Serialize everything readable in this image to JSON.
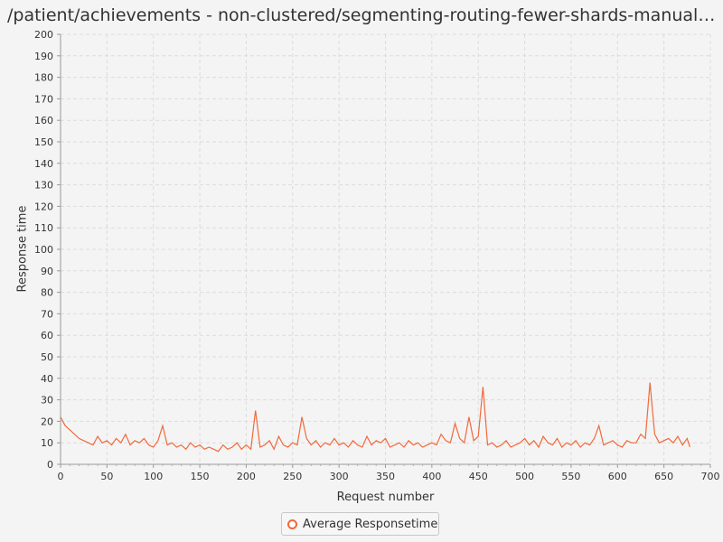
{
  "chart_data": {
    "type": "line",
    "title": "/patient/achievements - non-clustered/segmenting-routing-fewer-shards-manual-ref...",
    "xlabel": "Request number",
    "ylabel": "Response time",
    "xlim": [
      0,
      700
    ],
    "ylim": [
      0,
      200
    ],
    "xticks": [
      0,
      50,
      100,
      150,
      200,
      250,
      300,
      350,
      400,
      450,
      500,
      550,
      600,
      650,
      700
    ],
    "yticks": [
      0,
      10,
      20,
      30,
      40,
      50,
      60,
      70,
      80,
      90,
      100,
      110,
      120,
      130,
      140,
      150,
      160,
      170,
      180,
      190,
      200
    ],
    "grid": true,
    "legend_position": "bottom-center",
    "series": [
      {
        "name": "Average Responsetime",
        "color": "#f06a3c",
        "x": [
          0,
          5,
          10,
          15,
          20,
          25,
          30,
          35,
          40,
          45,
          50,
          55,
          60,
          65,
          70,
          75,
          80,
          85,
          90,
          95,
          100,
          105,
          110,
          115,
          120,
          125,
          130,
          135,
          140,
          145,
          150,
          155,
          160,
          165,
          170,
          175,
          180,
          185,
          190,
          195,
          200,
          205,
          210,
          215,
          220,
          225,
          230,
          235,
          240,
          245,
          250,
          255,
          260,
          265,
          270,
          275,
          280,
          285,
          290,
          295,
          300,
          305,
          310,
          315,
          320,
          325,
          330,
          335,
          340,
          345,
          350,
          355,
          360,
          365,
          370,
          375,
          380,
          385,
          390,
          395,
          400,
          405,
          410,
          415,
          420,
          425,
          430,
          435,
          440,
          445,
          450,
          455,
          460,
          465,
          470,
          475,
          480,
          485,
          490,
          495,
          500,
          505,
          510,
          515,
          520,
          525,
          530,
          535,
          540,
          545,
          550,
          555,
          560,
          565,
          570,
          575,
          580,
          585,
          590,
          595,
          600,
          605,
          610,
          615,
          620,
          625,
          630,
          635,
          640,
          645,
          650,
          655,
          660,
          665,
          670,
          675,
          678
        ],
        "values": [
          22,
          18,
          16,
          14,
          12,
          11,
          10,
          9,
          13,
          10,
          11,
          9,
          12,
          10,
          14,
          9,
          11,
          10,
          12,
          9,
          8,
          11,
          18,
          9,
          10,
          8,
          9,
          7,
          10,
          8,
          9,
          7,
          8,
          7,
          6,
          9,
          7,
          8,
          10,
          7,
          9,
          7,
          25,
          8,
          9,
          11,
          7,
          13,
          9,
          8,
          10,
          9,
          22,
          12,
          9,
          11,
          8,
          10,
          9,
          12,
          9,
          10,
          8,
          11,
          9,
          8,
          13,
          9,
          11,
          10,
          12,
          8,
          9,
          10,
          8,
          11,
          9,
          10,
          8,
          9,
          10,
          9,
          14,
          11,
          10,
          19,
          12,
          10,
          22,
          11,
          13,
          36,
          9,
          10,
          8,
          9,
          11,
          8,
          9,
          10,
          12,
          9,
          11,
          8,
          13,
          10,
          9,
          12,
          8,
          10,
          9,
          11,
          8,
          10,
          9,
          12,
          18,
          9,
          10,
          11,
          9,
          8,
          11,
          10,
          10,
          14,
          12,
          38,
          14,
          10,
          11,
          12,
          10,
          13,
          9,
          12,
          8
        ]
      }
    ]
  }
}
